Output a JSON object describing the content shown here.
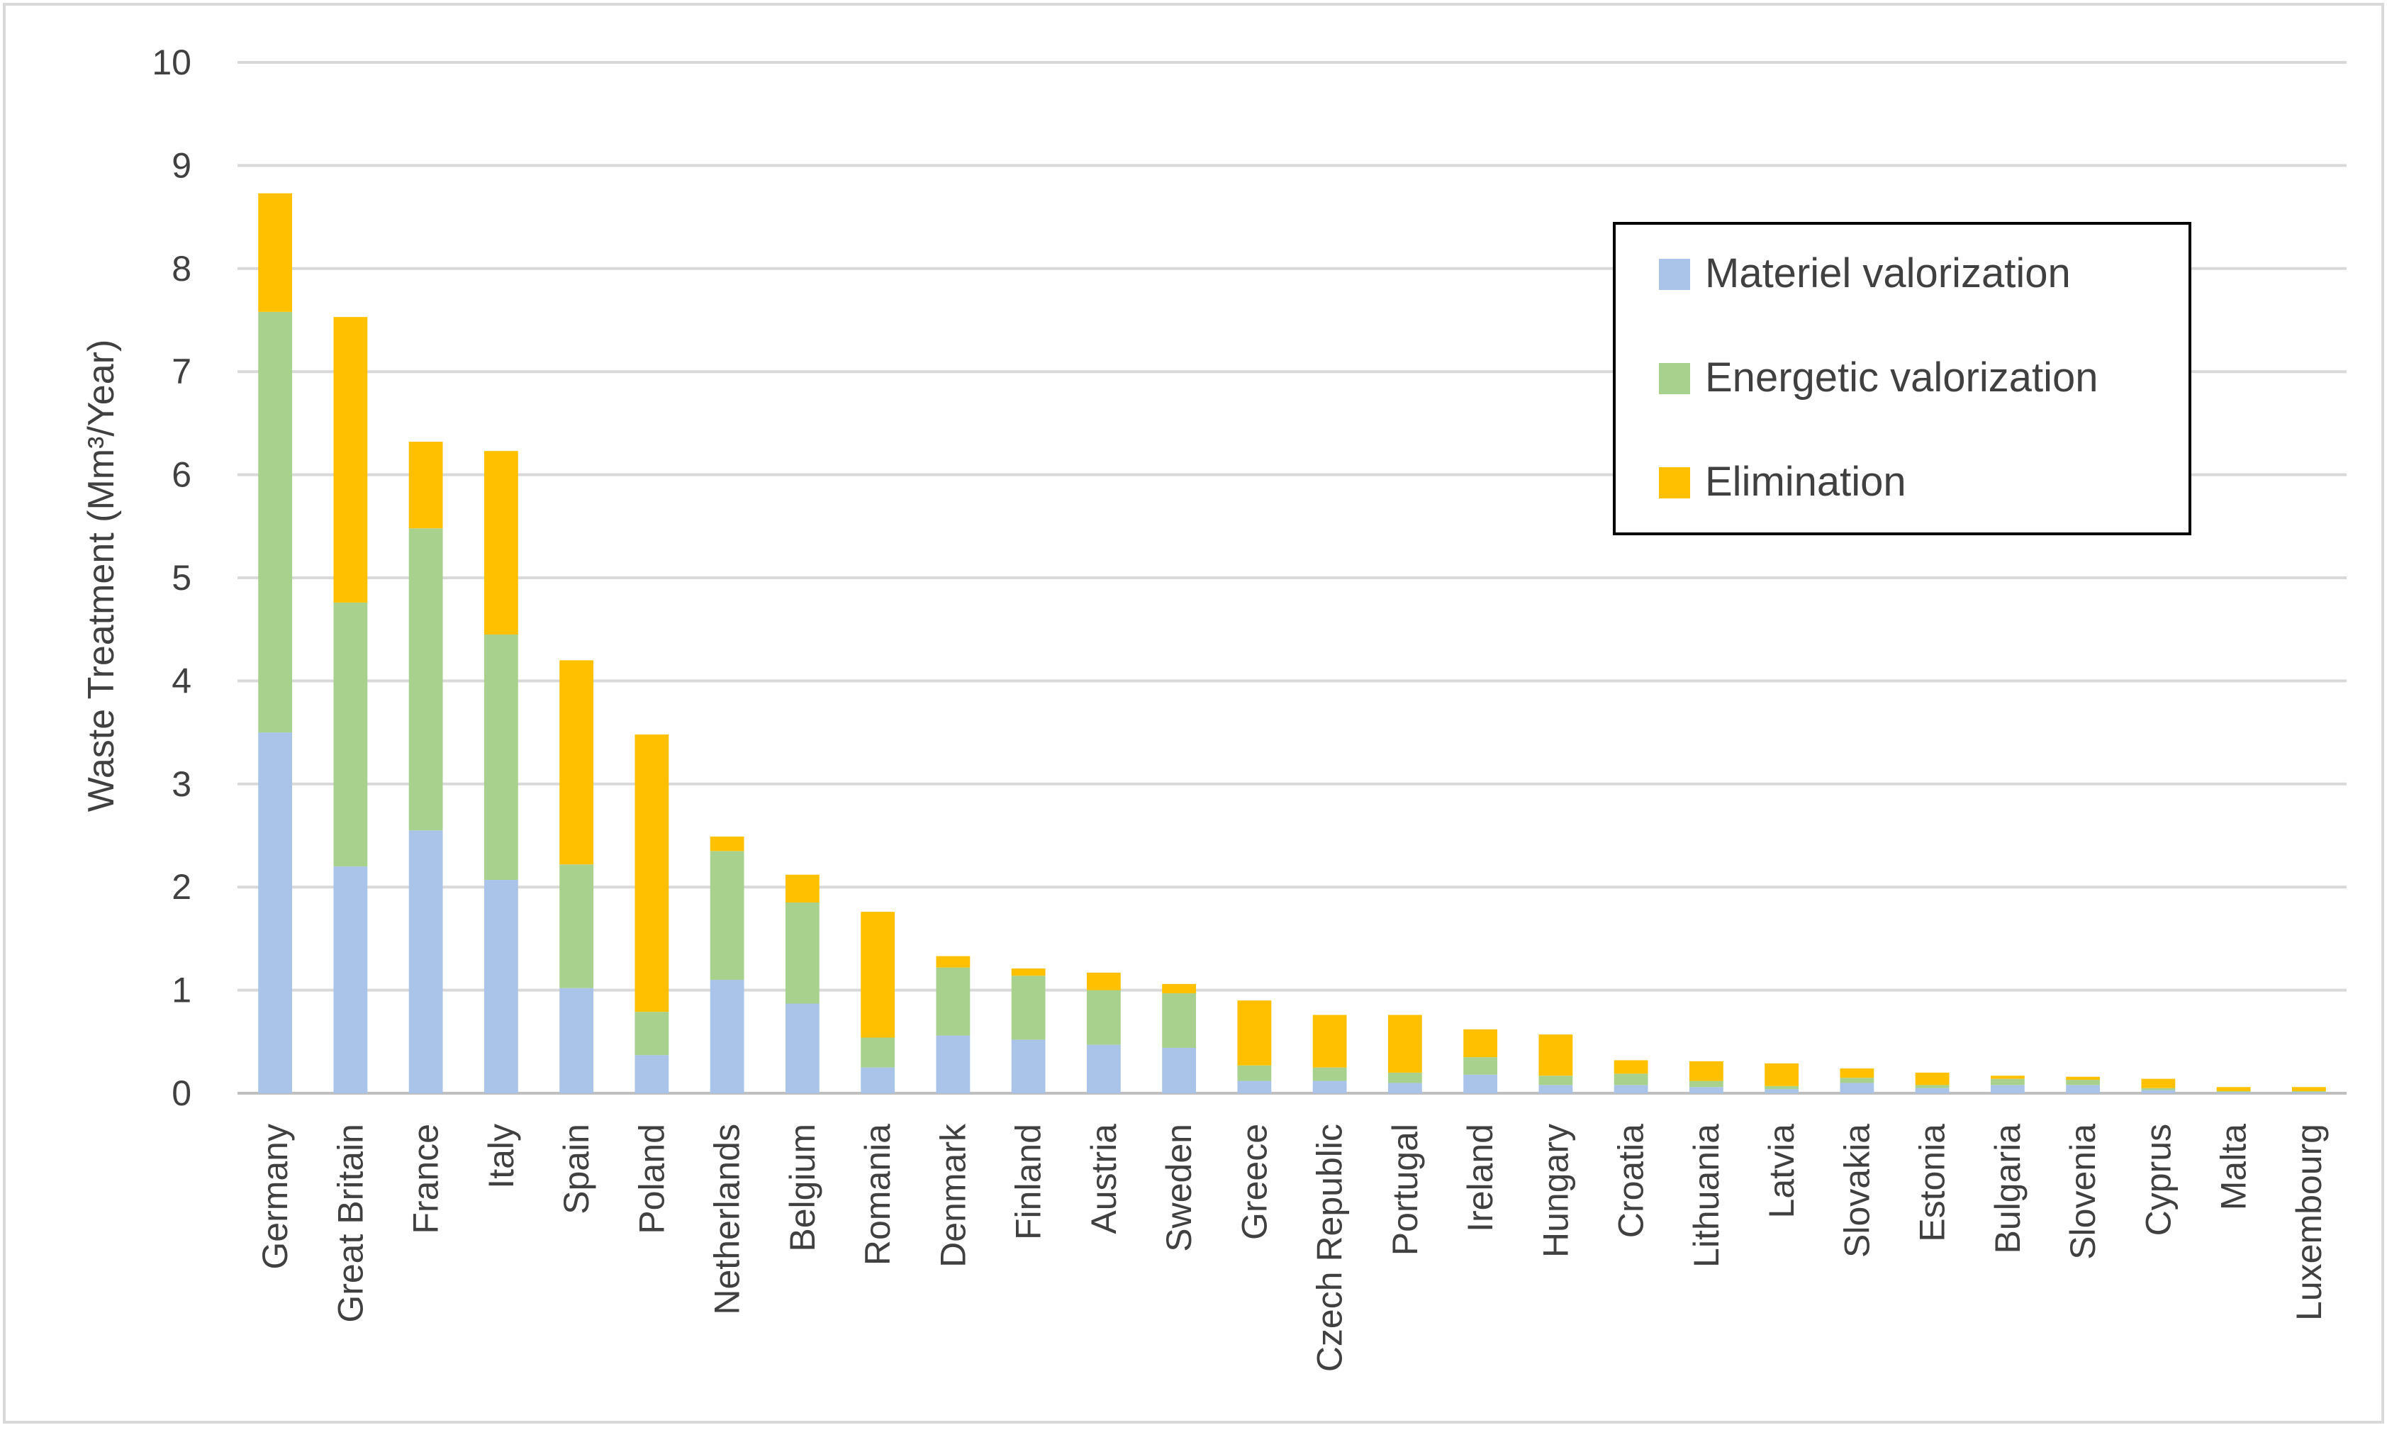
{
  "chart_data": {
    "type": "bar",
    "stacked": true,
    "title": "",
    "xlabel": "",
    "ylabel": "Waste Treatment (Mm³/Year)",
    "ylim": [
      0,
      10
    ],
    "yticks": [
      "0",
      "1",
      "2",
      "3",
      "4",
      "5",
      "6",
      "7",
      "8",
      "9",
      "10"
    ],
    "grid": true,
    "legend_position": "top-right",
    "categories": [
      "Germany",
      "Great Britain",
      "France",
      "Italy",
      "Spain",
      "Poland",
      "Netherlands",
      "Belgium",
      "Romania",
      "Denmark",
      "Finland",
      "Austria",
      "Sweden",
      "Greece",
      "Czech Republic",
      "Portugal",
      "Ireland",
      "Hungary",
      "Croatia",
      "Lithuania",
      "Latvia",
      "Slovakia",
      "Estonia",
      "Bulgaria",
      "Slovenia",
      "Cyprus",
      "Malta",
      "Luxembourg"
    ],
    "series": [
      {
        "name": "Materiel valorization",
        "color": "#A9C4E8",
        "values": [
          3.5,
          2.2,
          2.55,
          2.07,
          1.02,
          0.37,
          1.1,
          0.87,
          0.25,
          0.56,
          0.52,
          0.47,
          0.44,
          0.12,
          0.12,
          0.1,
          0.18,
          0.08,
          0.08,
          0.06,
          0.04,
          0.1,
          0.05,
          0.08,
          0.08,
          0.03,
          0.01,
          0.01
        ]
      },
      {
        "name": "Energetic valorization",
        "color": "#A9D18E",
        "values": [
          4.08,
          2.56,
          2.93,
          2.38,
          1.2,
          0.42,
          1.25,
          0.98,
          0.29,
          0.66,
          0.62,
          0.53,
          0.53,
          0.15,
          0.13,
          0.1,
          0.17,
          0.09,
          0.11,
          0.06,
          0.03,
          0.05,
          0.03,
          0.06,
          0.05,
          0.02,
          0.01,
          0.01
        ]
      },
      {
        "name": "Elimination",
        "color": "#FFC000",
        "values": [
          1.15,
          2.77,
          0.84,
          1.78,
          1.98,
          2.69,
          0.14,
          0.27,
          1.22,
          0.11,
          0.07,
          0.17,
          0.09,
          0.63,
          0.51,
          0.56,
          0.27,
          0.4,
          0.13,
          0.19,
          0.22,
          0.09,
          0.12,
          0.03,
          0.03,
          0.09,
          0.04,
          0.04
        ]
      }
    ]
  }
}
